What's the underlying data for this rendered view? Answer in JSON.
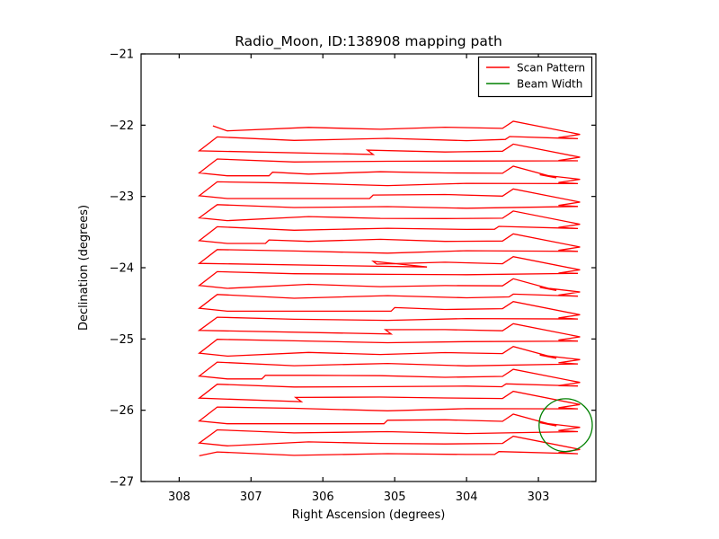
{
  "chart_data": {
    "type": "line",
    "title": "Radio_Moon, ID:138908 mapping path",
    "xlabel": "Right Ascension (degrees)",
    "ylabel": "Declination (degrees)",
    "x_axis_inverted": true,
    "xlim": [
      308.53,
      302.2
    ],
    "ylim": [
      -27,
      -21
    ],
    "grid": false,
    "background": "#ffffff",
    "spine_color": "#000000",
    "tick_direction": "in",
    "xticks": {
      "values": [
        308,
        307,
        306,
        305,
        304,
        303
      ],
      "labels": [
        "308",
        "307",
        "306",
        "305",
        "304",
        "303"
      ]
    },
    "yticks": {
      "values": [
        -21,
        -22,
        -23,
        -24,
        -25,
        -26,
        -27
      ],
      "labels": [
        "−21",
        "−22",
        "−23",
        "−24",
        "−25",
        "−26",
        "−27"
      ]
    },
    "legend": {
      "position": "upper right",
      "entries": [
        {
          "label": "Scan Pattern",
          "color": "#ff0000"
        },
        {
          "label": "Beam Width",
          "color": "#008000"
        }
      ]
    },
    "series": [
      {
        "name": "Scan Pattern",
        "kind": "raster_scan_path",
        "color": "#ff0000",
        "linewidth": 1.3,
        "scan": {
          "ra_start": 307.53,
          "ra_left_end": 307.72,
          "ra_spike": 303.35,
          "ra_tip": 302.42,
          "ra_return_right": 302.45,
          "dec_first_line": -22.04,
          "line_spacing": 0.158,
          "n_sweeps": 15,
          "wiggle_amp": 0.018,
          "go_anchors": [
            306.2,
            305.2,
            304.3
          ],
          "ret_anchors": [
            304.0,
            305.1,
            306.4
          ],
          "rows": [
            {
              "go": -22.04,
              "ret": -22.2,
              "ret_glitch": 303.4
            },
            {
              "go": -22.36,
              "ret": -22.51,
              "left_bolt": 305.3
            },
            {
              "go": -22.67,
              "ret": -22.83,
              "double_bolt": true,
              "go_glitch": 306.7
            },
            {
              "go": -22.99,
              "ret": -23.15,
              "go_glitch": 305.3
            },
            {
              "go": -23.3,
              "ret": -23.46,
              "ret_glitch": 303.55
            },
            {
              "go": -23.62,
              "ret": -23.78,
              "go_glitch": 306.75
            },
            {
              "go": -23.94,
              "ret": -24.09,
              "left_bolt": 304.55,
              "bolt_back": 305.3
            },
            {
              "go": -24.25,
              "ret": -24.41,
              "double_bolt": true,
              "ret_glitch": 303.35
            },
            {
              "go": -24.57,
              "ret": -24.73,
              "go_glitch": 305.0
            },
            {
              "go": -24.88,
              "ret": -25.04,
              "left_bolt": 305.05
            },
            {
              "go": -25.2,
              "ret": -25.36,
              "double_bolt": true
            },
            {
              "go": -25.52,
              "ret": -25.67,
              "go_glitch": 306.8,
              "ret_glitch": 303.45
            },
            {
              "go": -25.83,
              "ret": -25.99,
              "left_bolt": 306.3
            },
            {
              "go": -26.15,
              "ret": -26.31,
              "double_bolt": true,
              "go_glitch": 305.1
            },
            {
              "go": -26.46,
              "ret": -26.62,
              "ret_glitch": 303.55
            }
          ]
        }
      },
      {
        "name": "Beam Width",
        "kind": "circle",
        "color": "#008000",
        "linewidth": 1.3,
        "center": [
          302.62,
          -26.21
        ],
        "radius_deg": 0.37
      }
    ]
  }
}
